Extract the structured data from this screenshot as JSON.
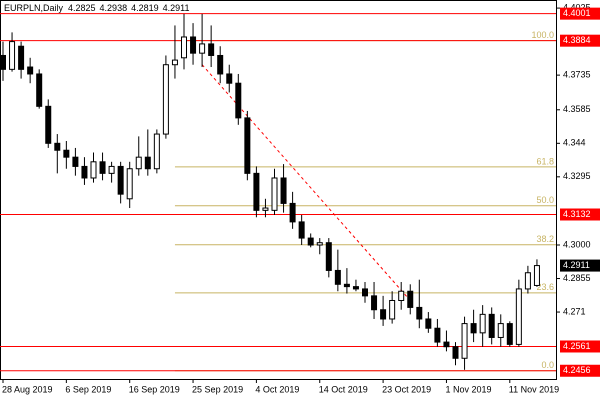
{
  "chart_data": {
    "type": "candlestick",
    "title": "EURPLN,Daily",
    "quote": [
      4.2825,
      4.2938,
      4.2819,
      4.2911
    ],
    "categories": [
      "28 Aug 2019",
      null,
      null,
      null,
      null,
      null,
      null,
      "6 Sep 2019",
      null,
      null,
      null,
      null,
      null,
      null,
      "16 Sep 2019",
      null,
      null,
      null,
      null,
      null,
      null,
      "25 Sep 2019",
      null,
      null,
      null,
      null,
      null,
      null,
      "4 Oct 2019",
      null,
      null,
      null,
      null,
      null,
      null,
      "14 Oct 2019",
      null,
      null,
      null,
      null,
      null,
      null,
      "23 Oct 2019",
      null,
      null,
      null,
      null,
      null,
      null,
      "1 Nov 2019",
      null,
      null,
      null,
      null,
      null,
      null,
      "11 Nov 2019",
      null,
      null,
      null
    ],
    "open": [
      4.382,
      4.376,
      4.386,
      4.377,
      4.374,
      4.36,
      4.344,
      4.341,
      4.338,
      4.334,
      4.329,
      4.336,
      4.331,
      4.334,
      4.32,
      4.333,
      4.338,
      4.333,
      4.348,
      4.378,
      4.381,
      4.39,
      4.383,
      4.387,
      4.382,
      4.374,
      4.37,
      4.355,
      4.331,
      4.315,
      4.315,
      4.329,
      4.318,
      4.31,
      4.303,
      4.3,
      4.301,
      4.289,
      4.283,
      4.282,
      4.281,
      4.278,
      4.272,
      4.268,
      4.276,
      4.28,
      4.273,
      4.268,
      4.264,
      4.258,
      4.256,
      4.251,
      4.266,
      4.262,
      4.27,
      4.26,
      4.266,
      4.257,
      4.281,
      4.2825
    ],
    "high": [
      4.388,
      4.392,
      4.388,
      4.381,
      4.376,
      4.363,
      4.348,
      4.345,
      4.342,
      4.338,
      4.34,
      4.34,
      4.336,
      4.336,
      4.336,
      4.347,
      4.35,
      4.35,
      4.382,
      4.395,
      4.4,
      4.396,
      4.4,
      4.395,
      4.386,
      4.378,
      4.374,
      4.358,
      4.334,
      4.32,
      4.333,
      4.335,
      4.323,
      4.313,
      4.305,
      4.303,
      4.303,
      4.298,
      4.29,
      4.285,
      4.284,
      4.284,
      4.278,
      4.28,
      4.284,
      4.283,
      4.285,
      4.271,
      4.268,
      4.263,
      4.258,
      4.269,
      4.272,
      4.274,
      4.273,
      4.27,
      4.267,
      4.285,
      4.291,
      4.2938
    ],
    "low": [
      4.371,
      4.375,
      4.372,
      4.37,
      4.359,
      4.342,
      4.331,
      4.333,
      4.33,
      4.326,
      4.327,
      4.328,
      4.327,
      4.318,
      4.316,
      4.33,
      4.33,
      4.331,
      4.346,
      4.372,
      4.376,
      4.378,
      4.377,
      4.377,
      4.37,
      4.366,
      4.352,
      4.328,
      4.312,
      4.312,
      4.313,
      4.314,
      4.307,
      4.3,
      4.299,
      4.296,
      4.286,
      4.28,
      4.279,
      4.28,
      4.275,
      4.268,
      4.265,
      4.266,
      4.272,
      4.27,
      4.264,
      4.262,
      4.256,
      4.254,
      4.248,
      4.246,
      4.258,
      4.256,
      4.257,
      4.256,
      4.256,
      4.256,
      4.279,
      4.2819
    ],
    "close": [
      4.376,
      4.388,
      4.376,
      4.374,
      4.36,
      4.344,
      4.341,
      4.338,
      4.334,
      4.329,
      4.336,
      4.331,
      4.334,
      4.322,
      4.333,
      4.338,
      4.333,
      4.348,
      4.378,
      4.38,
      4.39,
      4.383,
      4.387,
      4.382,
      4.374,
      4.37,
      4.355,
      4.331,
      4.315,
      4.316,
      4.329,
      4.318,
      4.31,
      4.303,
      4.3,
      4.301,
      4.289,
      4.283,
      4.282,
      4.281,
      4.278,
      4.272,
      4.268,
      4.276,
      4.28,
      4.273,
      4.268,
      4.264,
      4.258,
      4.256,
      4.251,
      4.266,
      4.262,
      4.27,
      4.26,
      4.266,
      4.257,
      4.281,
      4.288,
      4.2911
    ],
    "up_color": "#ffffff",
    "down_color": "#000000",
    "ylim": [
      4.2416,
      4.406
    ],
    "yticks": [
      4.4025,
      4.3735,
      4.3585,
      4.344,
      4.3295,
      {
        "value": 4.3,
        "label": "4.3000"
      },
      4.2855,
      4.271
    ],
    "grid": false,
    "levels": [
      4.4001,
      4.3884,
      4.3132,
      4.2561,
      4.2456
    ],
    "level_color": "#ff0000",
    "current_price": 4.2911,
    "fibonacci": [
      {
        "level": {
          "value": 100,
          "label": "100.0"
        },
        "price": 4.3884
      },
      {
        "level": 61.8,
        "price": 4.3338
      },
      {
        "level": {
          "value": 50,
          "label": "50.0"
        },
        "price": 4.317
      },
      {
        "level": 38.2,
        "price": 4.3001
      },
      {
        "level": 23.6,
        "price": 4.2793
      },
      {
        "level": {
          "value": 0,
          "label": "0.0"
        },
        "price": 4.2456
      }
    ],
    "fib_color": "#c8b464",
    "trend_line": {
      "x": [
        22,
        45
      ],
      "y": [
        4.378,
        4.276
      ],
      "color": "#ff0000"
    }
  }
}
